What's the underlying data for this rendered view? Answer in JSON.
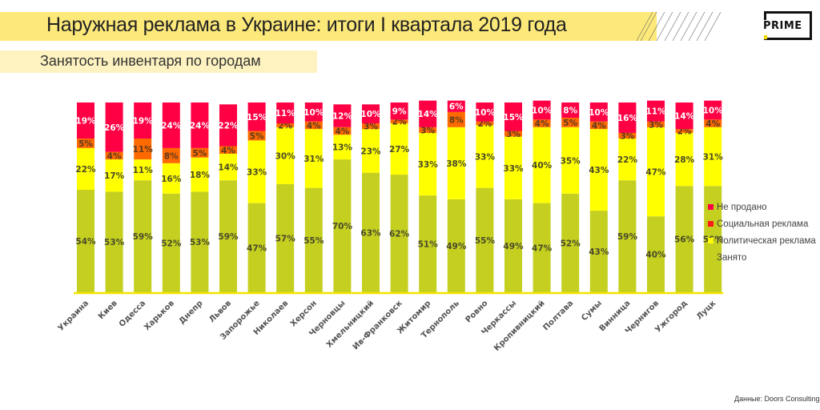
{
  "header": {
    "title": "Наружная реклама в Украине: итоги I квартала 2019 года",
    "subtitle": "Занятость инвентаря по городам",
    "logo_text": "PRIME"
  },
  "source": "Данные: Doors Consulting",
  "colors": {
    "title_band": "#fde97a",
    "subtitle_band": "#fef3c0",
    "unsold": "#ff0044",
    "social": "#ff6a00",
    "political": "#ffff00",
    "occupied": "#c4cf20",
    "baseline": "#f5e400"
  },
  "chart_data": {
    "type": "bar",
    "stacked": true,
    "normalized_percent": true,
    "title": "Занятость инвентаря по городам",
    "xlabel": "",
    "ylabel": "",
    "ylim": [
      0,
      100
    ],
    "grid": false,
    "legend_position": "right",
    "categories": [
      "Украина",
      "Киев",
      "Одесса",
      "Харьков",
      "Днепр",
      "Львов",
      "Запорожье",
      "Николаев",
      "Херсон",
      "Черновцы",
      "Хмельницкий",
      "Ив-Франковск",
      "Житомир",
      "Тернополь",
      "Ровно",
      "Черкассы",
      "Кропивницкий",
      "Полтава",
      "Сумы",
      "Винница",
      "Чернигов",
      "Ужгород",
      "Луцк"
    ],
    "series": [
      {
        "name": "Занято",
        "color": "#c4cf20",
        "label_color": "#4a4a2a",
        "values": [
          54,
          53,
          59,
          52,
          53,
          59,
          47,
          57,
          55,
          70,
          63,
          62,
          51,
          49,
          55,
          49,
          47,
          52,
          43,
          59,
          40,
          56,
          56
        ]
      },
      {
        "name": "Политическая реклама",
        "color": "#ffff00",
        "label_color": "#4a4a2a",
        "values": [
          22,
          17,
          11,
          16,
          18,
          14,
          33,
          30,
          31,
          13,
          23,
          27,
          33,
          38,
          33,
          33,
          40,
          35,
          43,
          22,
          47,
          28,
          31
        ]
      },
      {
        "name": "Социальная реклама",
        "color": "#ff6a00",
        "label_color": "#5a3a20",
        "values": [
          5,
          4,
          11,
          8,
          5,
          4,
          5,
          2,
          4,
          4,
          3,
          2,
          3,
          8,
          2,
          3,
          4,
          5,
          4,
          3,
          3,
          2,
          4
        ]
      },
      {
        "name": "Не продано",
        "color": "#ff0044",
        "label_color": "#ffffff",
        "values": [
          19,
          26,
          19,
          24,
          24,
          22,
          15,
          11,
          10,
          12,
          10,
          9,
          14,
          6,
          10,
          15,
          10,
          8,
          10,
          16,
          11,
          14,
          10
        ]
      }
    ],
    "legend": [
      {
        "name": "Не продано",
        "color": "#ff0044"
      },
      {
        "name": "Социальная реклама",
        "color": "#ff1a1a"
      },
      {
        "name": "Политическая реклама",
        "color": "#ffff00"
      },
      {
        "name": "Занято",
        "color": "#c4cf20"
      }
    ]
  }
}
